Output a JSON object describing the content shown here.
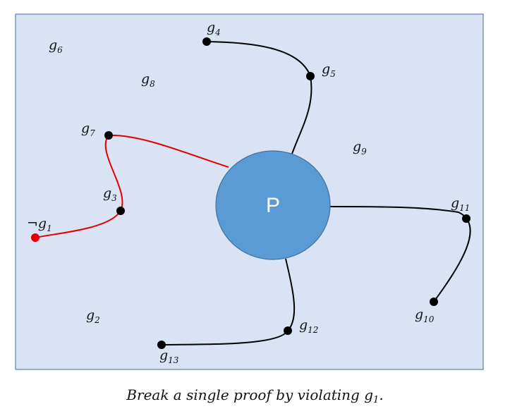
{
  "diagram": {
    "background_color": "#dae3f3",
    "border_color": "#5b7fbd",
    "center_node": {
      "label": "P",
      "fill": "#5b9bd5",
      "stroke": "#41719c"
    },
    "colors": {
      "path_normal": "#000000",
      "path_violated": "#e00000"
    },
    "labels": [
      {
        "id": "g4",
        "main": "g",
        "sub": "4"
      },
      {
        "id": "g5",
        "main": "g",
        "sub": "5"
      },
      {
        "id": "g6",
        "main": "g",
        "sub": "6"
      },
      {
        "id": "g8",
        "main": "g",
        "sub": "8"
      },
      {
        "id": "g7",
        "main": "g",
        "sub": "7"
      },
      {
        "id": "g9",
        "main": "g",
        "sub": "9"
      },
      {
        "id": "g3",
        "main": "g",
        "sub": "3"
      },
      {
        "id": "ng1",
        "main": "¬g",
        "sub": "1"
      },
      {
        "id": "g11",
        "main": "g",
        "sub": "11"
      },
      {
        "id": "g10",
        "main": "g",
        "sub": "10"
      },
      {
        "id": "g2",
        "main": "g",
        "sub": "2"
      },
      {
        "id": "g12",
        "main": "g",
        "sub": "12"
      },
      {
        "id": "g13",
        "main": "g",
        "sub": "13"
      }
    ]
  },
  "caption": {
    "text": "Break a single proof by violating g",
    "subscript": "1",
    "suffix": "."
  }
}
